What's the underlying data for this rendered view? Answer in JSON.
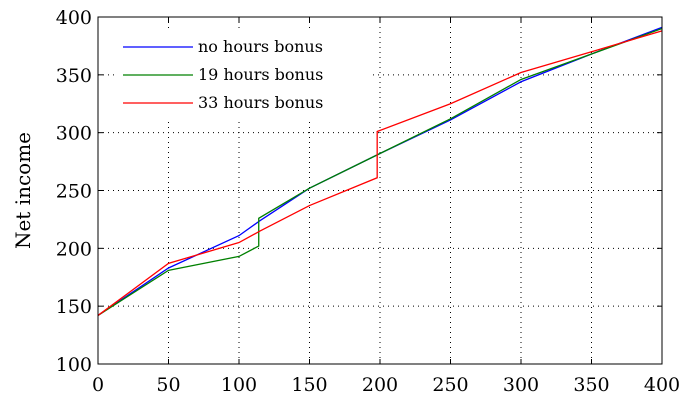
{
  "chart_data": {
    "type": "line",
    "title": "",
    "xlabel": "",
    "ylabel": "Net income",
    "xlim": [
      0,
      400
    ],
    "ylim": [
      100,
      400
    ],
    "xticks": [
      "0",
      "50",
      "100",
      "150",
      "200",
      "250",
      "300",
      "350",
      "400"
    ],
    "yticks": [
      "100",
      "150",
      "200",
      "250",
      "300",
      "350",
      "400"
    ],
    "grid": true,
    "legend_position": "top-left",
    "series": [
      {
        "name": "no hours bonus",
        "color": "#0000ff",
        "x": [
          0,
          50,
          100,
          115,
          150,
          200,
          250,
          300,
          350,
          400
        ],
        "y": [
          142,
          183,
          211,
          224,
          252,
          282,
          311,
          344,
          368,
          391
        ]
      },
      {
        "name": "19 hours bonus",
        "color": "#008000",
        "x": [
          0,
          50,
          100,
          114,
          114,
          150,
          200,
          250,
          300,
          350,
          400
        ],
        "y": [
          142,
          181,
          193,
          202,
          226,
          252,
          282,
          312,
          346,
          368,
          390
        ]
      },
      {
        "name": "33 hours bonus",
        "color": "#ff0000",
        "x": [
          0,
          50,
          100,
          115,
          150,
          198,
          198,
          250,
          300,
          350,
          400
        ],
        "y": [
          142,
          187,
          205,
          215,
          237,
          261,
          301,
          325,
          352,
          370,
          388
        ]
      }
    ]
  }
}
